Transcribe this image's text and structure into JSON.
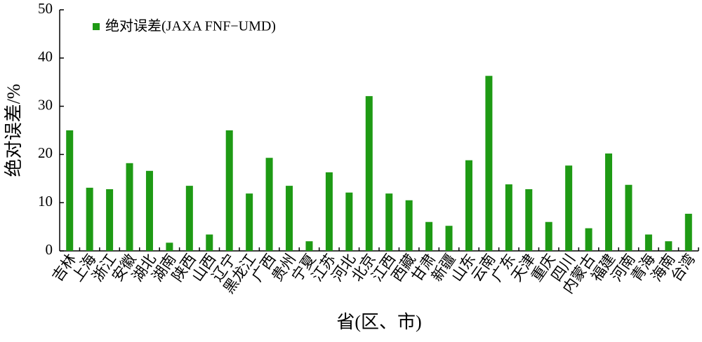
{
  "chart_data": {
    "type": "bar",
    "x_label": "省(区、市)",
    "y_label": "绝对误差/%",
    "categories": [
      "吉林",
      "上海",
      "浙江",
      "安徽",
      "湖北",
      "湖南",
      "陕西",
      "山西",
      "辽宁",
      "黑龙江",
      "广西",
      "贵州",
      "宁夏",
      "江苏",
      "河北",
      "北京",
      "江西",
      "西藏",
      "甘肃",
      "新疆",
      "山东",
      "云南",
      "广东",
      "天津",
      "重庆",
      "四川",
      "内蒙古",
      "福建",
      "河南",
      "青海",
      "海南",
      "台湾"
    ],
    "series": [
      {
        "name": "绝对误差(JAXA FNF−UMD)",
        "color": "#1e9a14",
        "values": [
          25.0,
          13.1,
          12.8,
          18.2,
          16.6,
          1.7,
          13.5,
          3.4,
          25.0,
          11.9,
          19.3,
          13.5,
          2.0,
          16.3,
          12.1,
          32.1,
          11.9,
          10.5,
          6.0,
          5.2,
          18.8,
          36.3,
          13.8,
          12.8,
          6.0,
          17.7,
          4.7,
          20.2,
          13.7,
          3.4,
          2.0,
          7.7
        ]
      }
    ],
    "ylim": [
      0,
      50
    ],
    "yticks": [
      0,
      10,
      20,
      30,
      40,
      50
    ],
    "legend": "upper left"
  }
}
